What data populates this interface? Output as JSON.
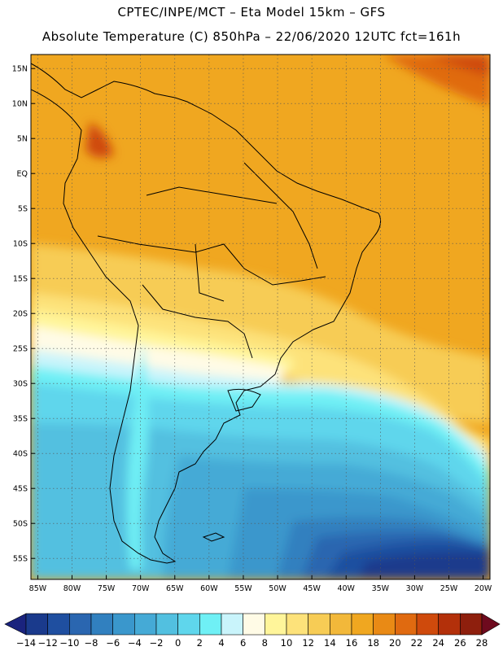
{
  "header": {
    "line1": "CPTEC/INPE/MCT –  Eta Model 15km – GFS",
    "line2": "Absolute Temperature (C) 850hPa – 22/06/2020 12UTC fct=161h"
  },
  "map": {
    "lon_range": [
      -86,
      -19
    ],
    "lat_range": [
      -58,
      17
    ],
    "lat_ticks": [
      "15N",
      "10N",
      "5N",
      "EQ",
      "5S",
      "10S",
      "15S",
      "20S",
      "25S",
      "30S",
      "35S",
      "40S",
      "45S",
      "50S",
      "55S"
    ],
    "lat_values": [
      15,
      10,
      5,
      0,
      -5,
      -10,
      -15,
      -20,
      -25,
      -30,
      -35,
      -40,
      -45,
      -50,
      -55
    ],
    "lon_ticks": [
      "85W",
      "80W",
      "75W",
      "70W",
      "65W",
      "60W",
      "55W",
      "50W",
      "45W",
      "40W",
      "35W",
      "30W",
      "25W",
      "20W"
    ],
    "lon_values": [
      -85,
      -80,
      -75,
      -70,
      -65,
      -60,
      -55,
      -50,
      -45,
      -40,
      -35,
      -30,
      -25,
      -20
    ]
  },
  "colorbar": {
    "labels": [
      "-14",
      "-12",
      "-10",
      "-8",
      "-6",
      "-4",
      "-2",
      "0",
      "2",
      "4",
      "6",
      "8",
      "10",
      "12",
      "14",
      "16",
      "18",
      "20",
      "22",
      "24",
      "26",
      "28"
    ],
    "colors": [
      "#1a3a8c",
      "#1f4fa0",
      "#2a66b0",
      "#3180bf",
      "#3a97cc",
      "#45aad6",
      "#52c0e0",
      "#5fd6ec",
      "#6ff0f5",
      "#c9f4fb",
      "#fffbe6",
      "#fff59a",
      "#fde27a",
      "#f7cc55",
      "#f2b83a",
      "#f0a720",
      "#e98a15",
      "#e06a10",
      "#cf4a0c",
      "#b3300a",
      "#8e1f0d"
    ],
    "left_arrow_color": "#1a237e",
    "right_arrow_color": "#6e0a1e"
  },
  "colors": {
    "tropics": "#f0a720",
    "subtropics": "#f7cc55",
    "cold": "#45aad6",
    "very_cold": "#1a3a8c"
  }
}
